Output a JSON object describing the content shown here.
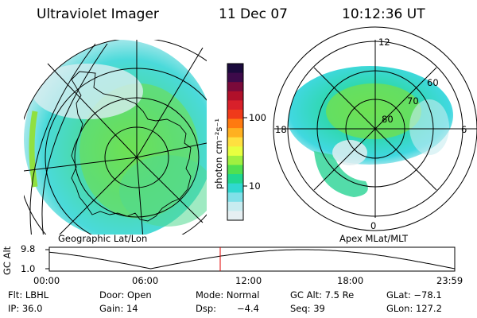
{
  "header": {
    "instrument": "Ultraviolet Imager",
    "date": "11 Dec 07",
    "time": "10:12:36 UT"
  },
  "colorbar": {
    "unit_label": "photon cm⁻²s⁻¹",
    "ticks": [
      "100",
      "10"
    ],
    "colors": [
      "#1a0a3c",
      "#3d0a4a",
      "#7a0a3a",
      "#b0102a",
      "#d8202a",
      "#f03a1a",
      "#ff7a10",
      "#ffb020",
      "#ffe040",
      "#e8ff40",
      "#a0f040",
      "#50e050",
      "#20d890",
      "#30d8d0",
      "#80e0e8",
      "#c8ecf0",
      "#e6eff2"
    ]
  },
  "left_panel": {
    "caption": "Geographic Lat/Lon"
  },
  "right_panel": {
    "caption": "Apex MLat/MLT",
    "mlt_labels": {
      "top": "12",
      "left": "18",
      "right": "6",
      "bottom": "0"
    },
    "lat_labels": [
      "60",
      "70",
      "80"
    ]
  },
  "gc_alt_plot": {
    "ylabel": "GC Alt",
    "yticks": [
      "9.8",
      "1.0"
    ],
    "xticks": [
      "00:00",
      "06:00",
      "12:00",
      "18:00",
      "23:59"
    ],
    "marker_color": "#e00000"
  },
  "info": {
    "flt": "Flt: LBHL",
    "door": "Door: Open",
    "mode": "Mode: Normal",
    "gc_alt": "GC Alt: 7.5 Re",
    "glat": "GLat: −78.1",
    "ip": "IP: 36.0",
    "gain": "Gain: 14",
    "dsp_label": "Dsp:",
    "dsp_value": "−4.4",
    "seq": "Seq: 39",
    "glon": "GLon: 127.2"
  }
}
